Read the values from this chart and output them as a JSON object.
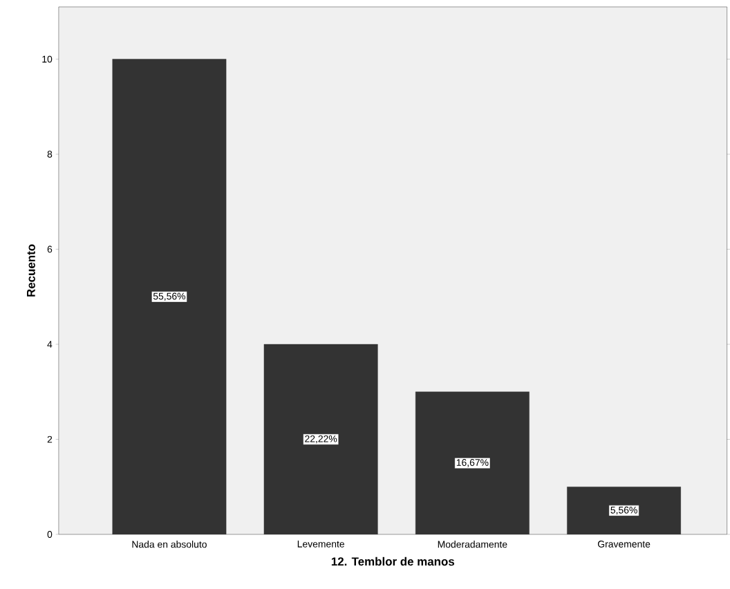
{
  "chart_data": {
    "type": "bar",
    "xlabel": "12. Temblor de manos",
    "ylabel": "Recuento",
    "categories": [
      "Nada en absoluto",
      "Levemente",
      "Moderadamente",
      "Gravemente"
    ],
    "values": [
      10,
      4,
      3,
      1
    ],
    "annotations": [
      "55,56%",
      "22,22%",
      "16,67%",
      "5,56%"
    ],
    "color": "#333333",
    "ylim": [
      0,
      11.1
    ],
    "yticks": [
      0,
      2,
      4,
      6,
      8,
      10
    ],
    "grid": false
  }
}
